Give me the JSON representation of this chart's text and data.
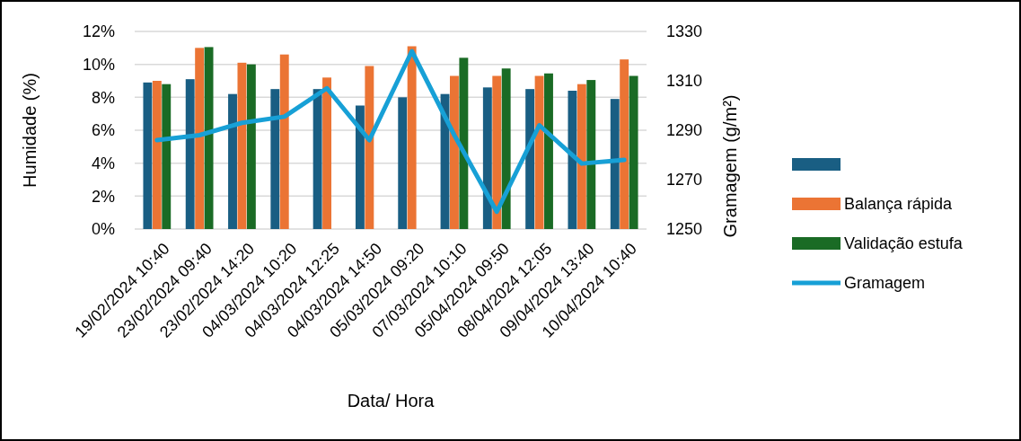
{
  "chart_data": {
    "type": "bar",
    "categories": [
      "19/02/2024 10:40",
      "23/02/2024 09:40",
      "23/02/2024 14:20",
      "04/03/2024 10:20",
      "04/03/2024 12:25",
      "04/03/2024 14:50",
      "05/03/2024 09:20",
      "07/03/2024 10:10",
      "05/04/2024 09:50",
      "08/04/2024 12:05",
      "09/04/2024 13:40",
      "10/04/2024 10:40"
    ],
    "series": [
      {
        "color": "#195e83",
        "values": [
          8.9,
          9.1,
          8.2,
          8.5,
          8.5,
          7.5,
          8.0,
          8.2,
          8.6,
          8.5,
          8.4,
          7.9
        ]
      },
      {
        "name": "Balança rápida",
        "color": "#eb7434",
        "values": [
          9.0,
          11.0,
          10.1,
          10.6,
          9.2,
          9.9,
          11.1,
          9.3,
          9.3,
          9.3,
          8.8,
          10.3
        ]
      },
      {
        "name": "Validação estufa",
        "color": "#1a6b25",
        "values": [
          8.8,
          11.05,
          10.0,
          null,
          null,
          null,
          null,
          10.4,
          9.75,
          9.45,
          9.05,
          9.3
        ]
      },
      {
        "name": "Gramagem",
        "type": "line",
        "axis": "y2",
        "color": "#17a0d6",
        "values": [
          1286,
          1288,
          1293,
          1295.5,
          1307,
          1286,
          1322,
          1288,
          1257,
          1292,
          1276.5,
          1278
        ]
      }
    ],
    "xlabel": "Data/ Hora",
    "ylabel": "Humidade (%)",
    "y2label": "Gramagem (g/m²)",
    "ylim": [
      0,
      12
    ],
    "yticks": [
      {
        "value": 0,
        "label": "0%"
      },
      {
        "value": 2,
        "label": "2%"
      },
      {
        "value": 4,
        "label": "4%"
      },
      {
        "value": 6,
        "label": "6%"
      },
      {
        "value": 8,
        "label": "8%"
      },
      {
        "value": 10,
        "label": "10%"
      },
      {
        "value": 12,
        "label": "12%"
      }
    ],
    "y2lim": [
      1250,
      1330
    ],
    "y2ticks": [
      1250,
      1270,
      1290,
      1310,
      1330
    ],
    "grid": "y",
    "legend": "right",
    "marker": "none",
    "line_style": "solid"
  }
}
